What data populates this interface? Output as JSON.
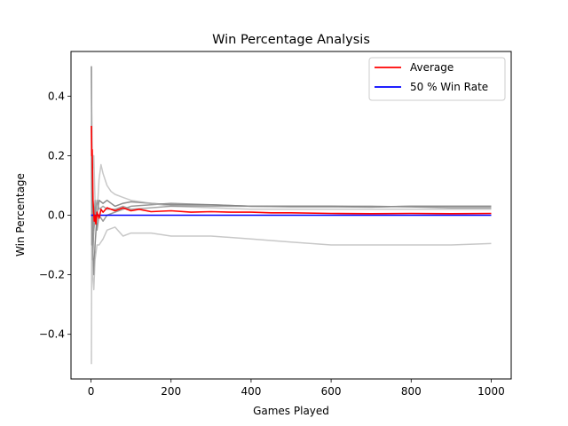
{
  "chart_data": {
    "type": "line",
    "title": "Win Percentage Analysis",
    "xlabel": "Games Played",
    "ylabel": "Win Percentage",
    "xlim": [
      -50,
      1050
    ],
    "ylim": [
      -0.55,
      0.55
    ],
    "xticks": [
      0,
      200,
      400,
      600,
      800,
      1000
    ],
    "xtick_labels": [
      "0",
      "200",
      "400",
      "600",
      "800",
      "1000"
    ],
    "yticks": [
      -0.4,
      -0.2,
      0.0,
      0.2,
      0.4
    ],
    "ytick_labels": [
      "−0.4",
      "−0.2",
      "0.0",
      "0.2",
      "0.4"
    ],
    "grid": false,
    "legend_position": "top-right",
    "legend": [
      {
        "label": "Average",
        "color": "#ff0000"
      },
      {
        "label": "50 % Win Rate",
        "color": "#0000ff"
      }
    ],
    "simulations": [
      {
        "color": "#808080",
        "opacity": 0.9,
        "x": [
          1,
          2,
          4,
          7,
          10,
          15,
          20,
          30,
          40,
          60,
          80,
          100,
          150,
          200,
          300,
          400,
          500,
          600,
          700,
          800,
          900,
          1000
        ],
        "y": [
          0.5,
          0.3,
          -0.1,
          -0.2,
          -0.1,
          0.0,
          0.05,
          0.04,
          0.05,
          0.03,
          0.04,
          0.045,
          0.04,
          0.035,
          0.035,
          0.03,
          0.03,
          0.03,
          0.028,
          0.03,
          0.03,
          0.03
        ]
      },
      {
        "color": "#808080",
        "opacity": 0.8,
        "x": [
          1,
          2,
          4,
          7,
          10,
          15,
          20,
          30,
          40,
          60,
          80,
          100,
          150,
          200,
          300,
          400,
          500,
          600,
          700,
          800,
          900,
          1000
        ],
        "y": [
          0.5,
          0.1,
          -0.15,
          -0.05,
          0.05,
          -0.05,
          0.0,
          -0.02,
          0.0,
          0.01,
          0.02,
          0.03,
          0.035,
          0.04,
          0.035,
          0.03,
          0.03,
          0.03,
          0.03,
          0.028,
          0.025,
          0.025
        ]
      },
      {
        "color": "#b0b0b0",
        "opacity": 0.7,
        "x": [
          1,
          2,
          4,
          7,
          10,
          15,
          20,
          25,
          30,
          40,
          50,
          60,
          80,
          100,
          150,
          200,
          300,
          400,
          500,
          600,
          700,
          800,
          900,
          1000
        ],
        "y": [
          0.5,
          0.25,
          0.15,
          0.2,
          0.05,
          0.0,
          0.12,
          0.17,
          0.14,
          0.1,
          0.08,
          0.07,
          0.06,
          0.05,
          0.04,
          0.03,
          0.025,
          0.02,
          0.02,
          0.02,
          0.02,
          0.02,
          0.02,
          0.02
        ]
      },
      {
        "color": "#b0b0b0",
        "opacity": 0.7,
        "x": [
          1,
          2,
          4,
          7,
          10,
          15,
          20,
          30,
          40,
          60,
          80,
          100,
          150,
          200,
          300,
          400,
          500,
          600,
          700,
          800,
          900,
          1000
        ],
        "y": [
          -0.5,
          0.0,
          -0.2,
          -0.25,
          -0.15,
          -0.1,
          -0.1,
          -0.08,
          -0.05,
          -0.04,
          -0.07,
          -0.06,
          -0.06,
          -0.07,
          -0.07,
          -0.08,
          -0.09,
          -0.1,
          -0.1,
          -0.1,
          -0.1,
          -0.095
        ]
      },
      {
        "color": "#909090",
        "opacity": 0.8,
        "x": [
          1,
          2,
          4,
          7,
          10,
          15,
          20,
          30,
          40,
          60,
          80,
          100,
          150,
          200,
          300,
          400,
          500,
          600,
          700,
          800,
          900,
          1000
        ],
        "y": [
          0.3,
          -0.1,
          0.05,
          -0.05,
          0.0,
          0.05,
          0.02,
          0.03,
          0.02,
          0.02,
          0.03,
          0.02,
          0.025,
          0.03,
          0.03,
          0.03,
          0.028,
          0.028,
          0.027,
          0.03,
          0.03,
          0.03
        ]
      }
    ],
    "series": [
      {
        "name": "Average",
        "color": "#ff0000",
        "x": [
          1,
          2,
          3,
          5,
          8,
          10,
          12,
          15,
          20,
          25,
          30,
          40,
          50,
          60,
          80,
          100,
          120,
          150,
          200,
          250,
          300,
          350,
          400,
          450,
          500,
          600,
          700,
          800,
          900,
          1000
        ],
        "y": [
          0.3,
          0.2,
          0.22,
          0.05,
          -0.02,
          0.0,
          -0.03,
          0.01,
          -0.01,
          0.02,
          0.01,
          0.025,
          0.02,
          0.015,
          0.025,
          0.015,
          0.02,
          0.012,
          0.015,
          0.01,
          0.012,
          0.01,
          0.01,
          0.008,
          0.008,
          0.006,
          0.005,
          0.006,
          0.005,
          0.006
        ]
      },
      {
        "name": "50 % Win Rate",
        "color": "#0000ff",
        "x": [
          0,
          1000
        ],
        "y": [
          0.0,
          0.0
        ]
      }
    ]
  }
}
